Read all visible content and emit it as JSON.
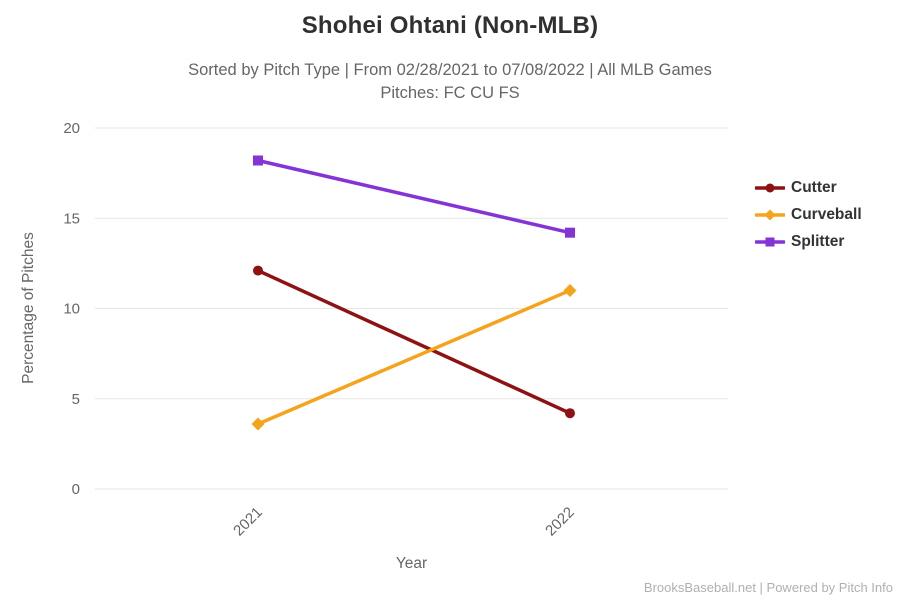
{
  "chart_data": {
    "type": "line",
    "title": "Shohei Ohtani (Non-MLB)",
    "subtitle_line1": "Sorted by Pitch Type | From 02/28/2021 to 07/08/2022 | All MLB Games",
    "subtitle_line2": "Pitches: FC CU FS",
    "xlabel": "Year",
    "ylabel": "Percentage of Pitches",
    "categories": [
      "2021",
      "2022"
    ],
    "yticks": [
      0,
      5,
      10,
      15,
      20
    ],
    "ylim": [
      0,
      20
    ],
    "grid": true,
    "legend_position": "right",
    "series": [
      {
        "name": "Cutter",
        "color": "#8e1212",
        "marker": "circle",
        "values": [
          12.1,
          4.2
        ]
      },
      {
        "name": "Curveball",
        "color": "#f6a31c",
        "marker": "diamond",
        "values": [
          3.6,
          11.0
        ]
      },
      {
        "name": "Splitter",
        "color": "#8433d6",
        "marker": "square",
        "values": [
          18.2,
          14.2
        ]
      }
    ],
    "grid_color": "#e6e6e6",
    "axis_text_color": "#666666"
  },
  "footer": {
    "credit": "BrooksBaseball.net | Powered by Pitch Info"
  }
}
